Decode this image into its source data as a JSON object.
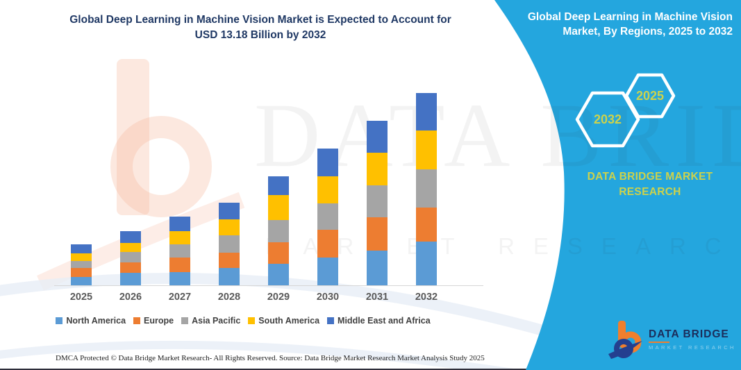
{
  "header": {
    "title_line1": "Global Deep Learning in Machine Vision Market is Expected to Account for",
    "title_line2": "USD 13.18 Billion by 2032"
  },
  "chart_data": {
    "type": "bar",
    "stacked": true,
    "title": "Global Deep Learning in Machine Vision Market is Expected to Account for USD 13.18 Billion by 2032",
    "unit": "USD Billion",
    "categories": [
      "2025",
      "2026",
      "2027",
      "2028",
      "2029",
      "2030",
      "2031",
      "2032"
    ],
    "series": [
      {
        "name": "North America",
        "color": "#5B9BD5",
        "values": [
          0.56,
          0.86,
          0.9,
          1.17,
          1.49,
          1.9,
          2.36,
          3.02
        ]
      },
      {
        "name": "Europe",
        "color": "#ED7D31",
        "values": [
          0.63,
          0.73,
          1.03,
          1.08,
          1.48,
          1.89,
          2.32,
          2.3
        ]
      },
      {
        "name": "Asia Pacific",
        "color": "#A5A5A5",
        "values": [
          0.48,
          0.7,
          0.88,
          1.19,
          1.51,
          1.84,
          2.18,
          2.62
        ]
      },
      {
        "name": "South America",
        "color": "#FFC000",
        "values": [
          0.52,
          0.6,
          0.9,
          1.06,
          1.7,
          1.86,
          2.22,
          2.7
        ]
      },
      {
        "name": "Middle East and Africa",
        "color": "#4472C4",
        "values": [
          0.64,
          0.83,
          1.03,
          1.16,
          1.32,
          1.9,
          2.22,
          2.54
        ]
      }
    ],
    "totals": [
      2.83,
      3.72,
      4.74,
      5.66,
      7.5,
      9.39,
      11.3,
      13.18
    ],
    "ylim": [
      0,
      13.5
    ],
    "grid": false,
    "legend_position": "bottom"
  },
  "side_panel": {
    "title": "Global Deep Learning in Machine Vision Market, By Regions, 2025 to 2032",
    "hexagons": [
      {
        "label": "2032"
      },
      {
        "label": "2025"
      }
    ],
    "brand": "DATA BRIDGE MARKET RESEARCH",
    "accent_teal": "#24A6DE",
    "accent_yellow": "#CDD24B"
  },
  "logo": {
    "name": "DATA BRIDGE",
    "sub": "MARKET RESEARCH",
    "orange": "#F07F2D",
    "navy": "#1B2D5B"
  },
  "watermark": {
    "brand": "DATA BRIDGE",
    "sub": "MARKET RESEARCH"
  },
  "footer": {
    "dmca": "DMCA Protected © Data Bridge Market Research-  All Rights Reserved.",
    "source": "Source: Data Bridge Market Research  Market Analysis Study 2025"
  }
}
